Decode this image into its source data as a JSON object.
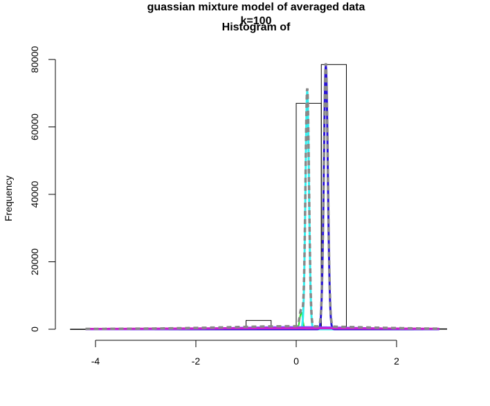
{
  "chart_data": {
    "type": "bar",
    "title_lines": [
      "guassian mixture model of averaged data",
      "k=100",
      "Histogram of"
    ],
    "xlabel": "",
    "ylabel": "Frequency",
    "xlim": [
      -4.3,
      3.0
    ],
    "ylim": [
      0,
      80000
    ],
    "x_ticks": [
      -4,
      -2,
      0,
      2
    ],
    "y_ticks": [
      0,
      20000,
      40000,
      60000,
      80000
    ],
    "histogram": {
      "bin_edges": [
        -4.5,
        -4.0,
        -3.5,
        -3.0,
        -2.5,
        -2.0,
        -1.5,
        -1.0,
        -0.5,
        0.0,
        0.5,
        1.0,
        1.5,
        2.0,
        2.5,
        3.0
      ],
      "counts": [
        20,
        10,
        10,
        15,
        30,
        60,
        150,
        2600,
        500,
        67000,
        78500,
        300,
        120,
        60,
        120
      ]
    },
    "components": [
      {
        "color": "#22dd22",
        "mu": 0.1,
        "sigma": 0.03,
        "peak": 5000,
        "width": 2,
        "dash": false
      },
      {
        "color": "#33eeee",
        "mu": 0.22,
        "sigma": 0.035,
        "peak": 70500,
        "width": 3,
        "dash": false
      },
      {
        "color": "#2a14d6",
        "mu": 0.59,
        "sigma": 0.04,
        "peak": 78000,
        "width": 3,
        "dash": false
      },
      {
        "color": "#8844ff",
        "mu": 0.0,
        "sigma": 1.2,
        "peak": 600,
        "width": 3,
        "dash": false
      },
      {
        "color": "#cc22cc",
        "mu": -0.3,
        "sigma": 2.5,
        "peak": 300,
        "width": 3,
        "dash": false
      }
    ],
    "mixture": {
      "color": "#888888",
      "dash": true
    }
  }
}
